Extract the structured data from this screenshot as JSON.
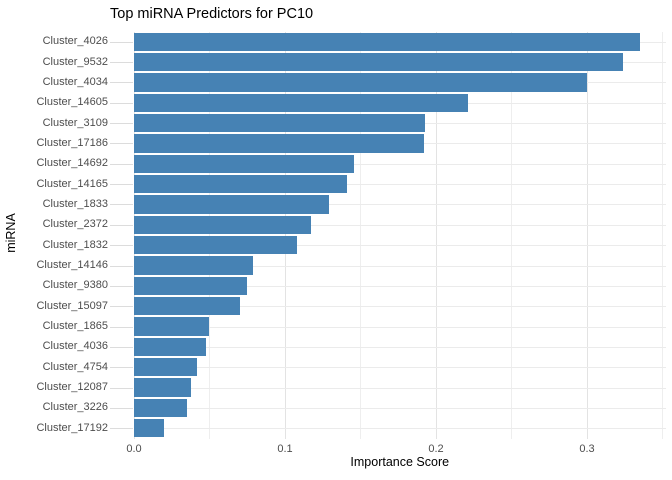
{
  "title": "Top miRNA Predictors for PC10",
  "colors": {
    "bar": "#4682B4",
    "grid_major": "#e3e3e3",
    "grid_minor": "#eeeeee",
    "tick_mark": "#dcdcdc",
    "tick_label": "#4d4d4d",
    "text": "#000000",
    "background": "#ffffff"
  },
  "chart_data": {
    "type": "bar",
    "orientation": "horizontal",
    "title": "Top miRNA Predictors for PC10",
    "xlabel": "Importance Score",
    "ylabel": "miRNA",
    "categories": [
      "Cluster_4026",
      "Cluster_9532",
      "Cluster_4034",
      "Cluster_14605",
      "Cluster_3109",
      "Cluster_17186",
      "Cluster_14692",
      "Cluster_14165",
      "Cluster_1833",
      "Cluster_2372",
      "Cluster_1832",
      "Cluster_14146",
      "Cluster_9380",
      "Cluster_15097",
      "Cluster_1865",
      "Cluster_4036",
      "Cluster_4754",
      "Cluster_12087",
      "Cluster_3226",
      "Cluster_17192"
    ],
    "values": [
      0.335,
      0.324,
      0.3,
      0.221,
      0.193,
      0.192,
      0.146,
      0.141,
      0.129,
      0.117,
      0.108,
      0.079,
      0.075,
      0.07,
      0.05,
      0.048,
      0.042,
      0.038,
      0.035,
      0.02
    ],
    "xlim": [
      0,
      0.352
    ],
    "xticks": [
      0.0,
      0.1,
      0.2,
      0.3
    ],
    "xtick_labels": [
      "0.0",
      "0.1",
      "0.2",
      "0.3"
    ],
    "grid_step": 0.05,
    "grid": true,
    "legend_position": "none",
    "bar_color": "#4682B4"
  }
}
